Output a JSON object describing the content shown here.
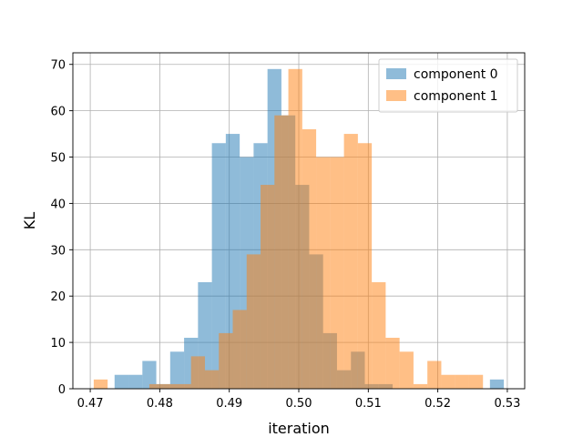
{
  "chart_data": {
    "type": "bar",
    "title": "",
    "xlabel": "iteration",
    "ylabel": "KL",
    "xlim": [
      0.4675,
      0.5325
    ],
    "ylim": [
      0,
      72.5
    ],
    "xticks": [
      0.47,
      0.48,
      0.49,
      0.5,
      0.51,
      0.52,
      0.53
    ],
    "xtick_labels": [
      "0.47",
      "0.48",
      "0.49",
      "0.50",
      "0.51",
      "0.52",
      "0.53"
    ],
    "yticks": [
      0,
      10,
      20,
      30,
      40,
      50,
      60,
      70
    ],
    "ytick_labels": [
      "0",
      "10",
      "20",
      "30",
      "40",
      "50",
      "60",
      "70"
    ],
    "grid": true,
    "legend_position": "top-right",
    "series": [
      {
        "name": "component 0",
        "color": "#1f77b4",
        "opacity": 0.5,
        "bin_start": 0.4735,
        "bin_width": 0.002,
        "values": [
          3,
          3,
          6,
          1,
          8,
          11,
          23,
          53,
          55,
          50,
          53,
          69,
          59,
          44,
          29,
          12,
          4,
          8,
          1,
          1,
          0,
          0,
          0,
          0,
          0,
          0,
          0,
          2
        ]
      },
      {
        "name": "component 1",
        "color": "#ff7f0e",
        "opacity": 0.5,
        "bin_start": 0.4705,
        "bin_width": 0.002,
        "values": [
          2,
          0,
          0,
          0,
          1,
          1,
          1,
          7,
          4,
          12,
          17,
          29,
          44,
          59,
          69,
          56,
          50,
          50,
          55,
          53,
          23,
          11,
          8,
          1,
          6,
          3,
          3,
          3
        ]
      }
    ]
  }
}
